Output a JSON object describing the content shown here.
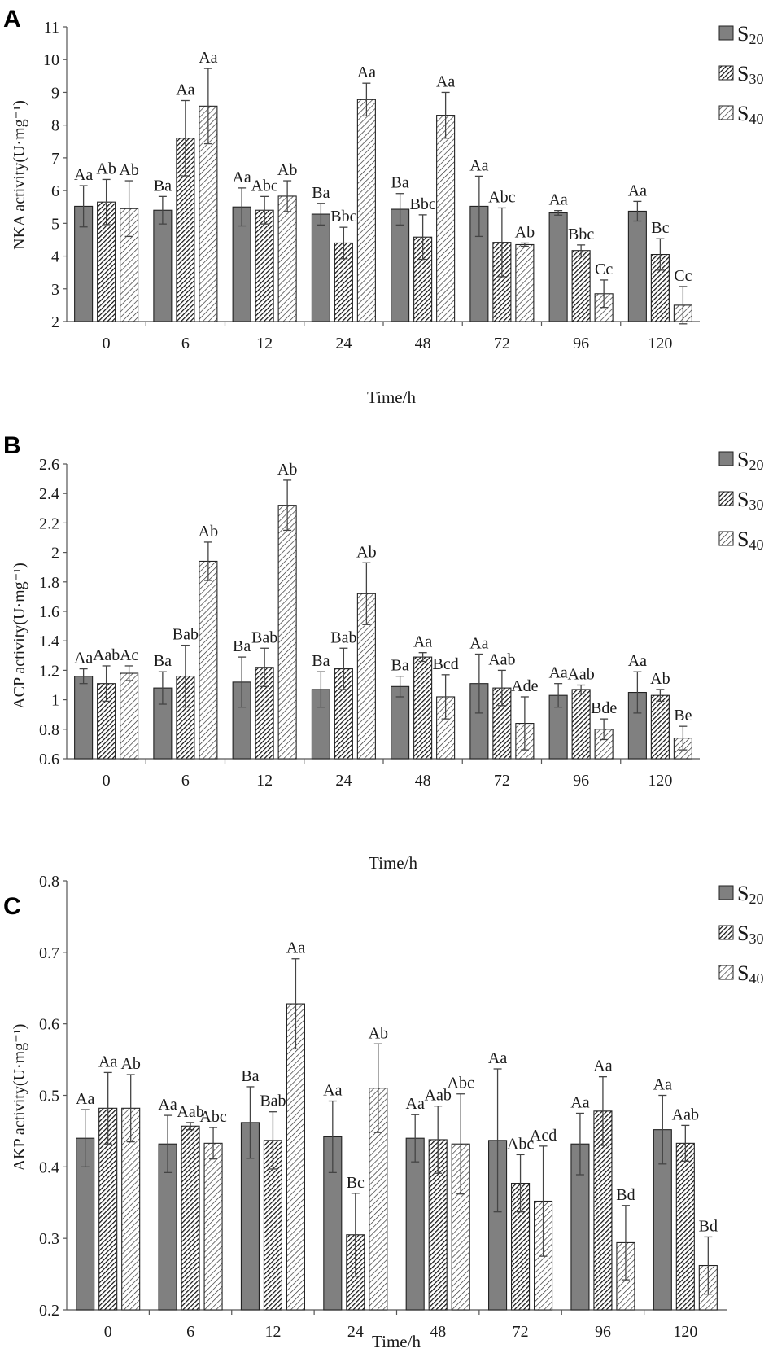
{
  "figure": {
    "panels": [
      "A",
      "B",
      "C"
    ]
  },
  "chart_data": [
    {
      "panel": "A",
      "type": "bar",
      "title": "",
      "xlabel": "Time/h",
      "ylabel": "NKA activity(U·mg⁻¹)",
      "ylim": [
        2,
        11
      ],
      "yticks": [
        2,
        3,
        4,
        5,
        6,
        7,
        8,
        9,
        10,
        11
      ],
      "ytick_labels": [
        "2",
        "3",
        "4",
        "5",
        "6",
        "7",
        "8",
        "9",
        "10",
        "11"
      ],
      "categories": [
        "0",
        "6",
        "12",
        "24",
        "48",
        "72",
        "96",
        "120"
      ],
      "legend": [
        {
          "base": "S",
          "sub": "20",
          "style": "gray"
        },
        {
          "base": "S",
          "sub": "30",
          "style": "hatch-dense"
        },
        {
          "base": "S",
          "sub": "40",
          "style": "hatch-light"
        }
      ],
      "legend_position": "top-right",
      "series": [
        {
          "name": "S20",
          "values": [
            5.52,
            5.4,
            5.5,
            5.28,
            5.43,
            5.52,
            5.32,
            5.37
          ],
          "errors": [
            0.63,
            0.42,
            0.58,
            0.33,
            0.48,
            0.92,
            0.07,
            0.3
          ],
          "labels": [
            "Aa",
            "Ba",
            "Aa",
            "Ba",
            "Ba",
            "Aa",
            "Aa",
            "Aa"
          ]
        },
        {
          "name": "S30",
          "values": [
            5.65,
            7.6,
            5.4,
            4.4,
            4.58,
            4.42,
            4.17,
            4.05
          ],
          "errors": [
            0.69,
            1.15,
            0.42,
            0.48,
            0.68,
            1.05,
            0.17,
            0.48
          ],
          "labels": [
            "Ab",
            "Aa",
            "Abc",
            "Bbc",
            "Bbc",
            "Abc",
            "Bbc",
            "Bc"
          ]
        },
        {
          "name": "S40",
          "values": [
            5.45,
            8.58,
            5.83,
            8.78,
            8.3,
            4.35,
            2.85,
            2.5
          ],
          "errors": [
            0.85,
            1.15,
            0.47,
            0.5,
            0.7,
            0.05,
            0.42,
            0.57
          ],
          "labels": [
            "Ab",
            "Aa",
            "Ab",
            "Aa",
            "Aa",
            "Ab",
            "Cc",
            "Cc"
          ]
        }
      ]
    },
    {
      "panel": "B",
      "type": "bar",
      "title": "",
      "xlabel": "Time/h",
      "ylabel": "ACP activity(U·mg⁻¹)",
      "ylim": [
        0.6,
        2.6
      ],
      "yticks": [
        0.6,
        0.8,
        1.0,
        1.2,
        1.4,
        1.6,
        1.8,
        2.0,
        2.2,
        2.4,
        2.6
      ],
      "ytick_labels": [
        "0.6",
        "0.8",
        "1",
        "1.2",
        "1.4",
        "1.6",
        "1.8",
        "2",
        "2.2",
        "2.4",
        "2.6"
      ],
      "categories": [
        "0",
        "6",
        "12",
        "24",
        "48",
        "72",
        "96",
        "120"
      ],
      "legend": [
        {
          "base": "S",
          "sub": "20",
          "style": "gray"
        },
        {
          "base": "S",
          "sub": "30",
          "style": "hatch-dense"
        },
        {
          "base": "S",
          "sub": "40",
          "style": "hatch-light"
        }
      ],
      "legend_position": "top-right",
      "series": [
        {
          "name": "S20",
          "values": [
            1.16,
            1.08,
            1.12,
            1.07,
            1.09,
            1.11,
            1.03,
            1.05
          ],
          "errors": [
            0.05,
            0.11,
            0.17,
            0.12,
            0.07,
            0.2,
            0.08,
            0.14
          ],
          "labels": [
            "Aa",
            "Ba",
            "Ba",
            "Ba",
            "Ba",
            "Aa",
            "Aa",
            "Aa"
          ]
        },
        {
          "name": "S30",
          "values": [
            1.11,
            1.16,
            1.22,
            1.21,
            1.29,
            1.08,
            1.07,
            1.03
          ],
          "errors": [
            0.12,
            0.21,
            0.13,
            0.14,
            0.03,
            0.12,
            0.03,
            0.04
          ],
          "labels": [
            "Aab",
            "Bab",
            "Bab",
            "Bab",
            "Aa",
            "Aab",
            "Aab",
            "Ab"
          ]
        },
        {
          "name": "S40",
          "values": [
            1.18,
            1.94,
            2.32,
            1.72,
            1.02,
            0.84,
            0.8,
            0.74
          ],
          "errors": [
            0.05,
            0.13,
            0.17,
            0.21,
            0.15,
            0.18,
            0.07,
            0.08
          ],
          "labels": [
            "Ac",
            "Ab",
            "Ab",
            "Ab",
            "Bcd",
            "Ade",
            "Bde",
            "Be"
          ]
        }
      ]
    },
    {
      "panel": "C",
      "type": "bar",
      "title": "",
      "xlabel": "Time/h",
      "ylabel": "AKP activity(U·mg⁻¹)",
      "ylim": [
        0.2,
        0.8
      ],
      "yticks": [
        0.2,
        0.3,
        0.4,
        0.5,
        0.6,
        0.7,
        0.8
      ],
      "ytick_labels": [
        "0.2",
        "0.3",
        "0.4",
        "0.5",
        "0.6",
        "0.7",
        "0.8"
      ],
      "categories": [
        "0",
        "6",
        "12",
        "24",
        "48",
        "72",
        "96",
        "120"
      ],
      "legend": [
        {
          "base": "S",
          "sub": "20",
          "style": "gray"
        },
        {
          "base": "S",
          "sub": "30",
          "style": "hatch-dense"
        },
        {
          "base": "S",
          "sub": "40",
          "style": "hatch-light"
        }
      ],
      "legend_position": "top-right",
      "series": [
        {
          "name": "S20",
          "values": [
            0.44,
            0.432,
            0.462,
            0.442,
            0.44,
            0.437,
            0.432,
            0.452
          ],
          "errors": [
            0.04,
            0.04,
            0.05,
            0.05,
            0.033,
            0.1,
            0.043,
            0.048
          ],
          "labels": [
            "Aa",
            "Aa",
            "Ba",
            "Aa",
            "Aa",
            "Aa",
            "Aa",
            "Aa"
          ]
        },
        {
          "name": "S30",
          "values": [
            0.482,
            0.457,
            0.437,
            0.305,
            0.438,
            0.377,
            0.478,
            0.433
          ],
          "errors": [
            0.05,
            0.005,
            0.04,
            0.058,
            0.047,
            0.04,
            0.048,
            0.025
          ],
          "labels": [
            "Aa",
            "Aab",
            "Bab",
            "Bc",
            "Aab",
            "Abc",
            "Aa",
            "Aab"
          ]
        },
        {
          "name": "S40",
          "values": [
            0.482,
            0.433,
            0.628,
            0.51,
            0.432,
            0.352,
            0.294,
            0.262
          ],
          "errors": [
            0.047,
            0.022,
            0.063,
            0.062,
            0.07,
            0.077,
            0.052,
            0.04
          ],
          "labels": [
            "Ab",
            "Abc",
            "Aa",
            "Ab",
            "Abc",
            "Acd",
            "Bd",
            "Bd"
          ]
        }
      ]
    }
  ]
}
